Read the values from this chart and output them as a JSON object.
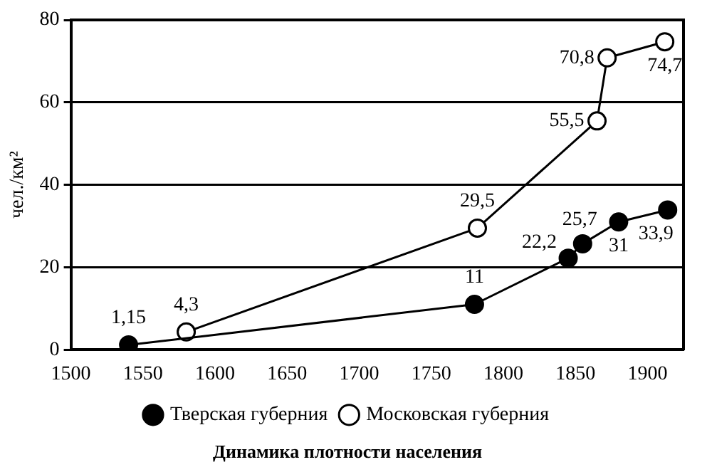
{
  "chart_data": {
    "type": "line",
    "title": "Динамика плотности населения",
    "ylabel": "чел./км²",
    "xlim": [
      1500,
      1925
    ],
    "xticks": [
      1500,
      1550,
      1600,
      1650,
      1700,
      1750,
      1800,
      1850,
      1900
    ],
    "ylim": [
      0,
      80
    ],
    "yticks": [
      0,
      20,
      40,
      60,
      80
    ],
    "grid": "y",
    "legend": "bottom",
    "marker": "circle",
    "line_style": "solid",
    "series": [
      {
        "name": "Тверская губерния",
        "color": "#000000",
        "x": [
          1540,
          1780,
          1845,
          1855,
          1880,
          1914
        ],
        "values": [
          1.15,
          11,
          22.2,
          25.7,
          31,
          33.9
        ],
        "value_labels": [
          "1,15",
          "11",
          "22,2",
          "25,7",
          "31",
          "33,9"
        ]
      },
      {
        "name": "Московская губерния",
        "color": "#ffffff",
        "x": [
          1580,
          1782,
          1865,
          1872,
          1912
        ],
        "values": [
          4.3,
          29.5,
          55.5,
          70.8,
          74.7
        ],
        "value_labels": [
          "4,3",
          "29,5",
          "55,5",
          "70,8",
          "74,7"
        ]
      }
    ]
  }
}
